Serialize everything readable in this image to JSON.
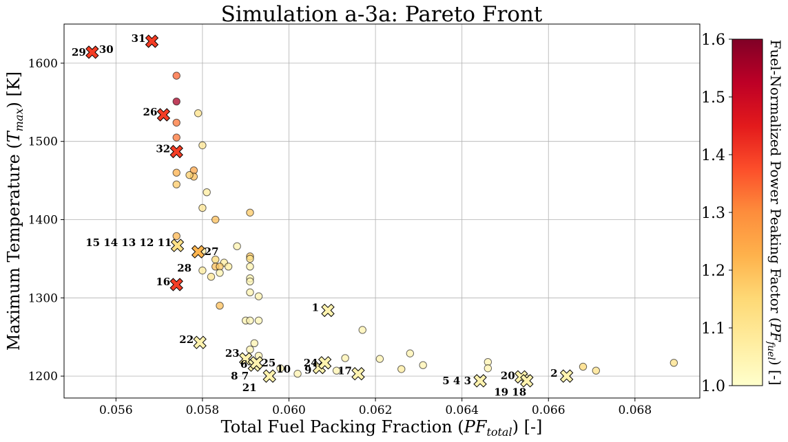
{
  "chart_data": {
    "type": "scatter",
    "title": "Simulation a-3a: Pareto Front",
    "xlabel_main": "Total Fuel Packing Fraction (",
    "xlabel_sym": "PF",
    "xlabel_sub": "total",
    "xlabel_tail": ") [-]",
    "ylabel_main": "Maximum Temperature (",
    "ylabel_sym": "T",
    "ylabel_sub": "max",
    "ylabel_tail": ") [K]",
    "colorbar_label_main": "Fuel-Normalized Power Peaking Factor (",
    "colorbar_label_sym": "PF",
    "colorbar_label_sub": "fuel",
    "colorbar_label_tail": ") [-]",
    "xlim": [
      0.0548,
      0.0695
    ],
    "ylim": [
      1172,
      1650
    ],
    "xticks": [
      "0.056",
      "0.058",
      "0.060",
      "0.062",
      "0.064",
      "0.066",
      "0.068"
    ],
    "yticks": [
      "1200",
      "1300",
      "1400",
      "1500",
      "1600"
    ],
    "colorbar": {
      "min": 1.0,
      "max": 1.6,
      "ticks": [
        "1.0",
        "1.1",
        "1.2",
        "1.3",
        "1.4",
        "1.5",
        "1.6"
      ],
      "colormap": "YlOrRd"
    },
    "grid": true,
    "population": [
      [
        0.0574,
        1584,
        1.35
      ],
      [
        0.0574,
        1551,
        1.55
      ],
      [
        0.0574,
        1524,
        1.33
      ],
      [
        0.0574,
        1505,
        1.33
      ],
      [
        0.0574,
        1460,
        1.23
      ],
      [
        0.0574,
        1445,
        1.18
      ],
      [
        0.0579,
        1536,
        1.12
      ],
      [
        0.058,
        1495,
        1.1
      ],
      [
        0.0578,
        1463,
        1.25
      ],
      [
        0.0578,
        1455,
        1.2
      ],
      [
        0.0577,
        1457,
        1.17
      ],
      [
        0.0581,
        1435,
        1.08
      ],
      [
        0.058,
        1415,
        1.1
      ],
      [
        0.0583,
        1400,
        1.2
      ],
      [
        0.0591,
        1409,
        1.18
      ],
      [
        0.0574,
        1379,
        1.22
      ],
      [
        0.058,
        1360,
        1.08
      ],
      [
        0.0588,
        1366,
        1.05
      ],
      [
        0.0591,
        1353,
        1.18
      ],
      [
        0.0591,
        1350,
        1.12
      ],
      [
        0.0583,
        1349,
        1.15
      ],
      [
        0.0585,
        1345,
        1.08
      ],
      [
        0.0583,
        1340,
        1.2
      ],
      [
        0.0584,
        1340,
        1.18
      ],
      [
        0.0586,
        1340,
        1.08
      ],
      [
        0.0591,
        1340,
        1.05
      ],
      [
        0.058,
        1335,
        1.08
      ],
      [
        0.0584,
        1332,
        1.05
      ],
      [
        0.0582,
        1327,
        1.1
      ],
      [
        0.0591,
        1325,
        1.05
      ],
      [
        0.0591,
        1321,
        1.04
      ],
      [
        0.0591,
        1307,
        1.05
      ],
      [
        0.0593,
        1302,
        1.05
      ],
      [
        0.0584,
        1290,
        1.2
      ],
      [
        0.059,
        1271,
        1.05
      ],
      [
        0.0591,
        1271,
        1.04
      ],
      [
        0.0593,
        1271,
        1.04
      ],
      [
        0.0617,
        1259,
        1.05
      ],
      [
        0.0592,
        1242,
        1.05
      ],
      [
        0.0591,
        1234,
        1.05
      ],
      [
        0.0593,
        1226,
        1.05
      ],
      [
        0.0613,
        1223,
        1.05
      ],
      [
        0.0621,
        1222,
        1.05
      ],
      [
        0.0628,
        1229,
        1.05
      ],
      [
        0.0598,
        1210,
        1.05
      ],
      [
        0.0602,
        1203,
        1.05
      ],
      [
        0.0611,
        1207,
        1.05
      ],
      [
        0.0626,
        1209,
        1.08
      ],
      [
        0.0631,
        1214,
        1.05
      ],
      [
        0.0646,
        1218,
        1.05
      ],
      [
        0.0646,
        1210,
        1.05
      ],
      [
        0.0668,
        1212,
        1.15
      ],
      [
        0.0671,
        1207,
        1.12
      ],
      [
        0.0689,
        1217,
        1.12
      ],
      [
        0.0655,
        1197,
        1.06
      ]
    ],
    "front": [
      {
        "x": 0.05545,
        "y": 1614,
        "c": 1.4,
        "labels": [
          {
            "text": "29",
            "anchor": "end",
            "dx": -9,
            "dy": 0
          },
          {
            "text": "30",
            "anchor": "start",
            "dx": 10,
            "dy": -4
          }
        ]
      },
      {
        "x": 0.05683,
        "y": 1628,
        "c": 1.4,
        "labels": [
          {
            "text": "31",
            "anchor": "end",
            "dx": -9,
            "dy": -4
          }
        ]
      },
      {
        "x": 0.0571,
        "y": 1534,
        "c": 1.4,
        "labels": [
          {
            "text": "26",
            "anchor": "end",
            "dx": -9,
            "dy": -4
          }
        ]
      },
      {
        "x": 0.0574,
        "y": 1487,
        "c": 1.4,
        "labels": [
          {
            "text": "32",
            "anchor": "end",
            "dx": -9,
            "dy": -4
          }
        ]
      },
      {
        "x": 0.05742,
        "y": 1367,
        "c": 1.12,
        "labels": [
          {
            "text": "15 14 13 12 11",
            "anchor": "end",
            "dx": -8,
            "dy": -4
          }
        ]
      },
      {
        "x": 0.0579,
        "y": 1359,
        "c": 1.22,
        "labels": [
          {
            "text": "27",
            "anchor": "start",
            "dx": 9,
            "dy": 0
          },
          {
            "text": "28",
            "anchor": "middle",
            "dx": -20,
            "dy": 24
          }
        ]
      },
      {
        "x": 0.0574,
        "y": 1317,
        "c": 1.4,
        "labels": [
          {
            "text": "16",
            "anchor": "end",
            "dx": -9,
            "dy": -4
          }
        ]
      },
      {
        "x": 0.0609,
        "y": 1284,
        "c": 1.05,
        "labels": [
          {
            "text": "1",
            "anchor": "end",
            "dx": -13,
            "dy": -4
          }
        ]
      },
      {
        "x": 0.05794,
        "y": 1243,
        "c": 1.05,
        "labels": [
          {
            "text": "22",
            "anchor": "end",
            "dx": -9,
            "dy": -4
          }
        ]
      },
      {
        "x": 0.059,
        "y": 1222,
        "c": 1.05,
        "labels": [
          {
            "text": "23",
            "anchor": "end",
            "dx": -9,
            "dy": -8
          }
        ]
      },
      {
        "x": 0.0592,
        "y": 1214,
        "c": 1.05,
        "labels": [
          {
            "text": "6",
            "anchor": "end",
            "dx": -10,
            "dy": -1
          }
        ]
      },
      {
        "x": 0.05925,
        "y": 1217,
        "c": 1.05,
        "labels": [
          {
            "text": "25",
            "anchor": "start",
            "dx": 7,
            "dy": 0
          }
        ]
      },
      {
        "x": 0.05955,
        "y": 1200,
        "c": 1.05,
        "labels": [
          {
            "text": "8  7",
            "anchor": "end",
            "dx": -30,
            "dy": 0
          },
          {
            "text": "21",
            "anchor": "middle",
            "dx": -29,
            "dy": 17
          },
          {
            "text": "10",
            "anchor": "start",
            "dx": 10,
            "dy": -10
          }
        ]
      },
      {
        "x": 0.0607,
        "y": 1211,
        "c": 1.05,
        "labels": [
          {
            "text": "9",
            "anchor": "end",
            "dx": -11,
            "dy": 4
          }
        ]
      },
      {
        "x": 0.06083,
        "y": 1217,
        "c": 1.05,
        "labels": [
          {
            "text": "24",
            "anchor": "end",
            "dx": -10,
            "dy": 0
          }
        ]
      },
      {
        "x": 0.0616,
        "y": 1203,
        "c": 1.05,
        "labels": [
          {
            "text": "17",
            "anchor": "end",
            "dx": -9,
            "dy": -4
          }
        ]
      },
      {
        "x": 0.06442,
        "y": 1194,
        "c": 1.05,
        "labels": [
          {
            "text": "5  4  3",
            "anchor": "end",
            "dx": -13,
            "dy": 0
          }
        ]
      },
      {
        "x": 0.06537,
        "y": 1199,
        "c": 1.05,
        "labels": [
          {
            "text": "20",
            "anchor": "end",
            "dx": -9,
            "dy": -2
          },
          {
            "text": "19 18",
            "anchor": "middle",
            "dx": -16,
            "dy": 22
          }
        ]
      },
      {
        "x": 0.0655,
        "y": 1194,
        "c": 1.05,
        "labels": []
      },
      {
        "x": 0.06642,
        "y": 1200,
        "c": 1.05,
        "labels": [
          {
            "text": "2",
            "anchor": "end",
            "dx": -13,
            "dy": -4
          }
        ]
      }
    ]
  }
}
